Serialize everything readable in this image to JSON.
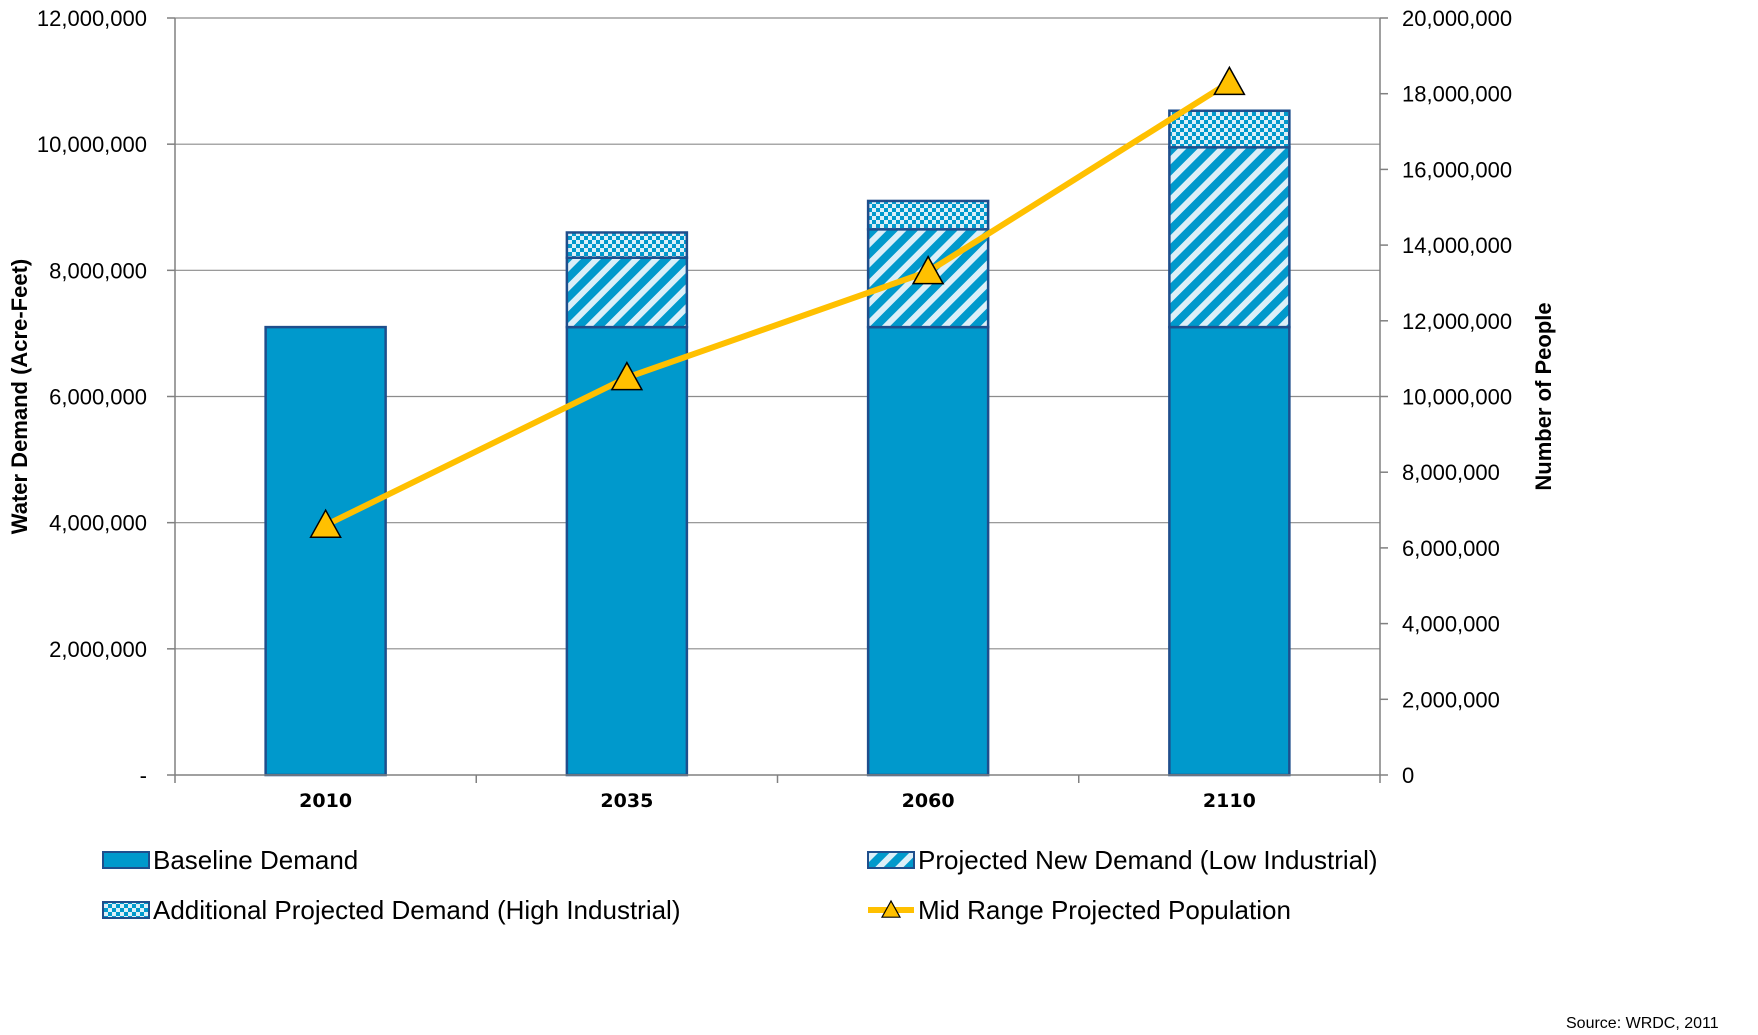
{
  "chart_data": {
    "type": "bar",
    "stacked": true,
    "categories": [
      "2010",
      "2035",
      "2060",
      "2110"
    ],
    "series": [
      {
        "name": "Baseline Demand",
        "kind": "bar",
        "axis": "left",
        "pattern": "solid",
        "values": [
          7100000,
          7100000,
          7100000,
          7100000
        ]
      },
      {
        "name": "Projected New Demand (Low Industrial)",
        "kind": "bar",
        "axis": "left",
        "pattern": "diagonal-stripes",
        "values": [
          0,
          1100000,
          1550000,
          2850000
        ]
      },
      {
        "name": "Additional Projected Demand (High Industrial)",
        "kind": "bar",
        "axis": "left",
        "pattern": "checker",
        "values": [
          0,
          400000,
          450000,
          580000
        ]
      },
      {
        "name": "Mid Range Projected Population",
        "kind": "line",
        "axis": "right",
        "marker": "triangle",
        "values": [
          6600000,
          10500000,
          13300000,
          18300000
        ]
      }
    ],
    "ylabel": "Water Demand (Acre-Feet)",
    "y2label": "Number of People",
    "ylim": [
      0,
      12000000
    ],
    "y2lim": [
      0,
      20000000
    ],
    "yticks": [
      "-",
      "2,000,000",
      "4,000,000",
      "6,000,000",
      "8,000,000",
      "10,000,000",
      "12,000,000"
    ],
    "y2ticks": [
      "0",
      "2,000,000",
      "4,000,000",
      "6,000,000",
      "8,000,000",
      "10,000,000",
      "12,000,000",
      "14,000,000",
      "16,000,000",
      "18,000,000",
      "20,000,000"
    ],
    "grid": true,
    "legend_position": "bottom",
    "source": "Source: WRDC, 2011",
    "colors": {
      "bar": "#0099cc",
      "bar_border": "#1f4e8c",
      "stripe_light": "#dceff8",
      "line": "#ffc000",
      "marker": "#ffc000",
      "marker_border": "#000000",
      "grid": "#8c8c8c"
    }
  }
}
